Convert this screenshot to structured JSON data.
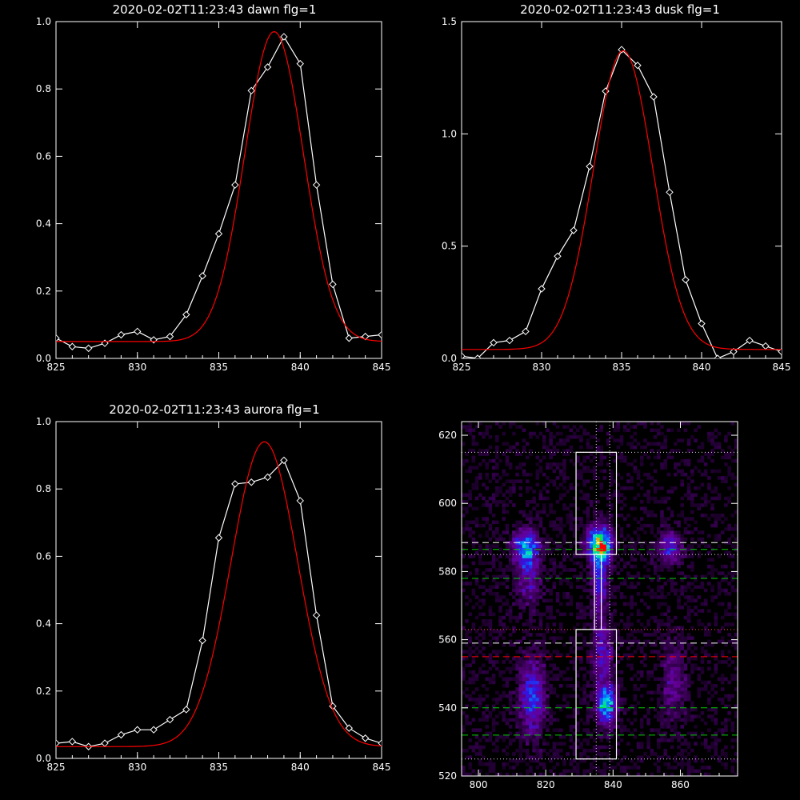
{
  "chart_data": [
    {
      "type": "line",
      "title": "2020-02-02T11:23:43 dawn flg=1",
      "xlim": [
        825,
        845
      ],
      "ylim": [
        0,
        1.0
      ],
      "x_ticks": [
        "825",
        "830",
        "835",
        "840",
        "845"
      ],
      "y_ticks": [
        "0.0",
        "0.2",
        "0.4",
        "0.6",
        "0.8",
        "1.0"
      ],
      "series": [
        {
          "role": "measured",
          "color": "#ffffff",
          "marker": "diamond",
          "x": [
            825,
            826,
            827,
            828,
            829,
            830,
            831,
            832,
            833,
            834,
            835,
            836,
            837,
            838,
            839,
            840,
            841,
            842,
            843,
            844,
            845
          ],
          "y": [
            0.06,
            0.035,
            0.03,
            0.045,
            0.07,
            0.08,
            0.055,
            0.065,
            0.13,
            0.245,
            0.37,
            0.515,
            0.795,
            0.865,
            0.955,
            0.875,
            0.515,
            0.22,
            0.06,
            0.065,
            0.07
          ]
        },
        {
          "role": "fit",
          "color": "#ff0000",
          "fit": "gaussian",
          "baseline": 0.05,
          "amplitude": 0.92,
          "center": 838.4,
          "sigma": 1.8
        }
      ]
    },
    {
      "type": "line",
      "title": "2020-02-02T11:23:43 dusk flg=1",
      "xlim": [
        825,
        845
      ],
      "ylim": [
        0,
        1.5
      ],
      "x_ticks": [
        "825",
        "830",
        "835",
        "840",
        "845"
      ],
      "y_ticks": [
        "0.0",
        "0.5",
        "1.0",
        "1.5"
      ],
      "series": [
        {
          "role": "measured",
          "color": "#ffffff",
          "marker": "diamond",
          "x": [
            825,
            826,
            827,
            828,
            829,
            830,
            831,
            832,
            833,
            834,
            835,
            836,
            837,
            838,
            839,
            840,
            841,
            842,
            843,
            844,
            845
          ],
          "y": [
            0.01,
            0.0,
            0.07,
            0.08,
            0.12,
            0.31,
            0.455,
            0.57,
            0.855,
            1.19,
            1.375,
            1.305,
            1.165,
            0.74,
            0.35,
            0.155,
            0.0,
            0.03,
            0.08,
            0.055,
            0.03
          ]
        },
        {
          "role": "fit",
          "color": "#ff0000",
          "fit": "gaussian",
          "baseline": 0.04,
          "amplitude": 1.33,
          "center": 835.1,
          "sigma": 1.85
        }
      ]
    },
    {
      "type": "line",
      "title": "2020-02-02T11:23:43 aurora flg=1",
      "xlim": [
        825,
        845
      ],
      "ylim": [
        0,
        1.0
      ],
      "x_ticks": [
        "825",
        "830",
        "835",
        "840",
        "845"
      ],
      "y_ticks": [
        "0.0",
        "0.2",
        "0.4",
        "0.6",
        "0.8",
        "1.0"
      ],
      "series": [
        {
          "role": "measured",
          "color": "#ffffff",
          "marker": "diamond",
          "x": [
            825,
            826,
            827,
            828,
            829,
            830,
            831,
            832,
            833,
            834,
            835,
            836,
            837,
            838,
            839,
            840,
            841,
            842,
            843,
            844,
            845
          ],
          "y": [
            0.045,
            0.05,
            0.035,
            0.045,
            0.07,
            0.085,
            0.085,
            0.115,
            0.145,
            0.35,
            0.655,
            0.815,
            0.82,
            0.835,
            0.885,
            0.765,
            0.425,
            0.155,
            0.09,
            0.06,
            0.045
          ]
        },
        {
          "role": "fit",
          "color": "#ff0000",
          "fit": "gaussian",
          "baseline": 0.035,
          "amplitude": 0.905,
          "center": 837.8,
          "sigma": 2.05
        }
      ]
    },
    {
      "type": "heatmap",
      "title": "",
      "xlim": [
        795,
        877
      ],
      "ylim": [
        520,
        624
      ],
      "x_ticks": [
        "800",
        "820",
        "840",
        "860"
      ],
      "y_ticks": [
        "520",
        "540",
        "560",
        "580",
        "600",
        "620"
      ],
      "blobs": [
        {
          "x": 814,
          "y": 587,
          "sx": 2.6,
          "sy": 3.5,
          "intensity": 0.5
        },
        {
          "x": 815,
          "y": 578,
          "sx": 2.5,
          "sy": 6.0,
          "intensity": 0.22
        },
        {
          "x": 816,
          "y": 543,
          "sx": 2.6,
          "sy": 7.5,
          "intensity": 0.38
        },
        {
          "x": 836,
          "y": 588,
          "sx": 2.4,
          "sy": 3.5,
          "intensity": 0.8
        },
        {
          "x": 836,
          "y": 578,
          "sx": 1.6,
          "sy": 7.0,
          "intensity": 0.35
        },
        {
          "x": 837,
          "y": 556,
          "sx": 2.0,
          "sy": 6.0,
          "intensity": 0.3
        },
        {
          "x": 838,
          "y": 541,
          "sx": 2.0,
          "sy": 4.0,
          "intensity": 0.6
        },
        {
          "x": 857,
          "y": 587,
          "sx": 2.4,
          "sy": 3.5,
          "intensity": 0.32
        },
        {
          "x": 858,
          "y": 548,
          "sx": 2.5,
          "sy": 8.0,
          "intensity": 0.2
        }
      ],
      "hot_spot": {
        "x": 837,
        "y": 587
      },
      "boxes": [
        {
          "x0": 829,
          "x1": 841,
          "y0": 585,
          "y1": 615,
          "color": "#ffffff"
        },
        {
          "x0": 829,
          "x1": 841,
          "y0": 525,
          "y1": 563,
          "color": "#ffffff"
        },
        {
          "x0": 834.5,
          "x1": 836.5,
          "y0": 563,
          "y1": 585,
          "color": "#ffffff"
        }
      ],
      "hlines": [
        {
          "y": 615,
          "color": "#dddddd",
          "style": "dotted"
        },
        {
          "y": 588.5,
          "color": "#ffffff",
          "style": "dashed"
        },
        {
          "y": 586.5,
          "color": "#00cc00",
          "style": "dashed"
        },
        {
          "y": 585,
          "color": "#dddddd",
          "style": "dotted"
        },
        {
          "y": 578,
          "color": "#00cc00",
          "style": "dashed"
        },
        {
          "y": 563,
          "color": "#ff4444",
          "style": "dotted"
        },
        {
          "y": 559,
          "color": "#ffffff",
          "style": "dashed"
        },
        {
          "y": 555,
          "color": "#ff0000",
          "style": "dashed"
        },
        {
          "y": 540,
          "color": "#00cc00",
          "style": "dashed"
        },
        {
          "y": 532,
          "color": "#00cc00",
          "style": "dashed"
        },
        {
          "y": 525,
          "color": "#dddddd",
          "style": "dotted"
        }
      ],
      "vlines": [
        {
          "x": 835,
          "color": "#dddddd",
          "style": "dotted"
        },
        {
          "x": 839,
          "color": "#dddddd",
          "style": "dotted"
        }
      ]
    }
  ]
}
